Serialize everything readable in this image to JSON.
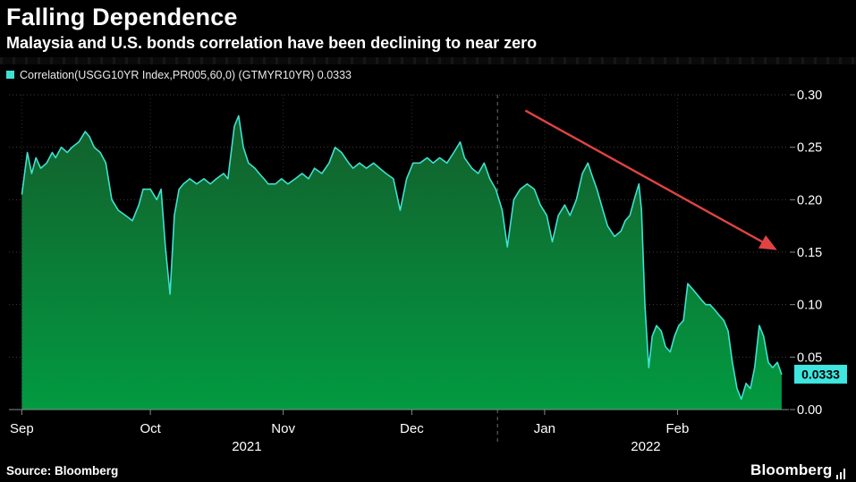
{
  "header": {
    "title": "Falling Dependence",
    "subtitle": "Malaysia and U.S. bonds correlation have been declining to near zero"
  },
  "legend": {
    "label": "Correlation(USGG10YR Index,PR005,60,0) (GTMYR10YR) 0.0333",
    "swatch_color": "#3fe0d0"
  },
  "footer": {
    "source": "Source: Bloomberg",
    "brand": "Bloomberg"
  },
  "chart_data": {
    "type": "area",
    "title": "Falling Dependence",
    "subtitle": "Malaysia and U.S. bonds correlation have been declining to near zero",
    "series_name": "Correlation(USGG10YR Index,PR005,60,0) (GTMYR10YR)",
    "x_domain": [
      -3,
      179
    ],
    "y_domain": [
      0,
      0.3
    ],
    "x_ticks": [
      {
        "value": 0,
        "label": "Sep"
      },
      {
        "value": 30,
        "label": "Oct"
      },
      {
        "value": 61,
        "label": "Nov"
      },
      {
        "value": 91,
        "label": "Dec"
      },
      {
        "value": 122,
        "label": "Jan"
      },
      {
        "value": 153,
        "label": "Feb"
      }
    ],
    "y_ticks": [
      {
        "value": 0.3,
        "label": "0.30"
      },
      {
        "value": 0.25,
        "label": "0.25"
      },
      {
        "value": 0.2,
        "label": "0.20"
      },
      {
        "value": 0.15,
        "label": "0.15"
      },
      {
        "value": 0.1,
        "label": "0.10"
      },
      {
        "value": 0.05,
        "label": "0.05"
      },
      {
        "value": 0.0,
        "label": "0.00"
      }
    ],
    "year_divider": 111,
    "year_labels": [
      {
        "value": 52.5,
        "label": "2021"
      },
      {
        "value": 145.6,
        "label": "2022"
      }
    ],
    "last_value": 0.0333,
    "last_value_label": "0.0333",
    "annotation_arrow": {
      "from": [
        117.5,
        0.285
      ],
      "to": [
        175.8,
        0.153
      ]
    },
    "colors": {
      "line": "#3fe0d0",
      "area_top": "#135f2c",
      "area_bottom": "#029a41",
      "arrow": "#e04343",
      "badge": "#3fe6e0",
      "grid": "#3e3e3e",
      "axis": "#8a8a8a"
    },
    "points": [
      [
        0,
        0.205
      ],
      [
        1.3,
        0.245
      ],
      [
        2.3,
        0.225
      ],
      [
        3.3,
        0.24
      ],
      [
        4.4,
        0.23
      ],
      [
        5.8,
        0.235
      ],
      [
        7.1,
        0.245
      ],
      [
        7.9,
        0.24
      ],
      [
        9.2,
        0.25
      ],
      [
        10.6,
        0.245
      ],
      [
        11.7,
        0.25
      ],
      [
        13.3,
        0.255
      ],
      [
        14.8,
        0.265
      ],
      [
        15.8,
        0.26
      ],
      [
        16.9,
        0.25
      ],
      [
        18.3,
        0.245
      ],
      [
        19.6,
        0.235
      ],
      [
        21,
        0.2
      ],
      [
        22.5,
        0.19
      ],
      [
        24.2,
        0.185
      ],
      [
        25.8,
        0.18
      ],
      [
        27.3,
        0.195
      ],
      [
        28.3,
        0.21
      ],
      [
        30,
        0.21
      ],
      [
        31.5,
        0.2
      ],
      [
        32.5,
        0.21
      ],
      [
        33.5,
        0.155
      ],
      [
        34.6,
        0.11
      ],
      [
        35.6,
        0.185
      ],
      [
        36.7,
        0.21
      ],
      [
        37.7,
        0.215
      ],
      [
        39.2,
        0.22
      ],
      [
        40.8,
        0.215
      ],
      [
        42.5,
        0.22
      ],
      [
        44,
        0.215
      ],
      [
        45.4,
        0.22
      ],
      [
        47.1,
        0.225
      ],
      [
        48.1,
        0.22
      ],
      [
        49.6,
        0.27
      ],
      [
        50.6,
        0.28
      ],
      [
        51.7,
        0.25
      ],
      [
        52.9,
        0.235
      ],
      [
        54.4,
        0.23
      ],
      [
        55.4,
        0.225
      ],
      [
        56.5,
        0.22
      ],
      [
        57.5,
        0.215
      ],
      [
        59.2,
        0.215
      ],
      [
        60.6,
        0.22
      ],
      [
        62.1,
        0.215
      ],
      [
        63.8,
        0.22
      ],
      [
        65.4,
        0.225
      ],
      [
        66.9,
        0.22
      ],
      [
        68.3,
        0.23
      ],
      [
        70,
        0.225
      ],
      [
        71.7,
        0.235
      ],
      [
        73.1,
        0.25
      ],
      [
        74.6,
        0.245
      ],
      [
        76.3,
        0.235
      ],
      [
        77.3,
        0.23
      ],
      [
        78.8,
        0.235
      ],
      [
        80.4,
        0.23
      ],
      [
        82.1,
        0.235
      ],
      [
        83.5,
        0.23
      ],
      [
        85,
        0.225
      ],
      [
        86.7,
        0.22
      ],
      [
        88.3,
        0.19
      ],
      [
        89.8,
        0.22
      ],
      [
        91.3,
        0.235
      ],
      [
        92.9,
        0.235
      ],
      [
        94.6,
        0.24
      ],
      [
        96,
        0.235
      ],
      [
        97.5,
        0.24
      ],
      [
        99.2,
        0.235
      ],
      [
        100.8,
        0.245
      ],
      [
        102.3,
        0.255
      ],
      [
        103.3,
        0.24
      ],
      [
        105,
        0.23
      ],
      [
        106.5,
        0.225
      ],
      [
        107.9,
        0.235
      ],
      [
        109.2,
        0.22
      ],
      [
        110.6,
        0.21
      ],
      [
        112.1,
        0.19
      ],
      [
        113.3,
        0.155
      ],
      [
        114.8,
        0.2
      ],
      [
        116.3,
        0.21
      ],
      [
        117.9,
        0.215
      ],
      [
        119.6,
        0.21
      ],
      [
        121,
        0.195
      ],
      [
        122.5,
        0.185
      ],
      [
        123.8,
        0.16
      ],
      [
        125.2,
        0.185
      ],
      [
        126.7,
        0.195
      ],
      [
        127.9,
        0.185
      ],
      [
        129.4,
        0.2
      ],
      [
        130.8,
        0.225
      ],
      [
        132.1,
        0.235
      ],
      [
        132.9,
        0.225
      ],
      [
        134.2,
        0.21
      ],
      [
        135.6,
        0.19
      ],
      [
        136.7,
        0.175
      ],
      [
        138.3,
        0.165
      ],
      [
        139.8,
        0.17
      ],
      [
        140.8,
        0.18
      ],
      [
        141.9,
        0.185
      ],
      [
        142.9,
        0.2
      ],
      [
        144,
        0.215
      ],
      [
        144.6,
        0.19
      ],
      [
        145.4,
        0.1
      ],
      [
        146.3,
        0.04
      ],
      [
        147.1,
        0.07
      ],
      [
        148.1,
        0.08
      ],
      [
        149.2,
        0.075
      ],
      [
        150.2,
        0.06
      ],
      [
        151.3,
        0.055
      ],
      [
        152.3,
        0.07
      ],
      [
        153.3,
        0.08
      ],
      [
        154.4,
        0.085
      ],
      [
        155.4,
        0.12
      ],
      [
        156.5,
        0.115
      ],
      [
        157.5,
        0.11
      ],
      [
        158.5,
        0.105
      ],
      [
        159.6,
        0.1
      ],
      [
        160.6,
        0.1
      ],
      [
        161.7,
        0.095
      ],
      [
        162.7,
        0.09
      ],
      [
        163.8,
        0.085
      ],
      [
        164.8,
        0.075
      ],
      [
        165.8,
        0.045
      ],
      [
        166.9,
        0.02
      ],
      [
        167.9,
        0.01
      ],
      [
        169,
        0.025
      ],
      [
        170,
        0.02
      ],
      [
        171,
        0.04
      ],
      [
        172.1,
        0.08
      ],
      [
        173.1,
        0.07
      ],
      [
        174.2,
        0.045
      ],
      [
        175.2,
        0.04
      ],
      [
        176.3,
        0.045
      ],
      [
        177.3,
        0.0333
      ]
    ]
  }
}
